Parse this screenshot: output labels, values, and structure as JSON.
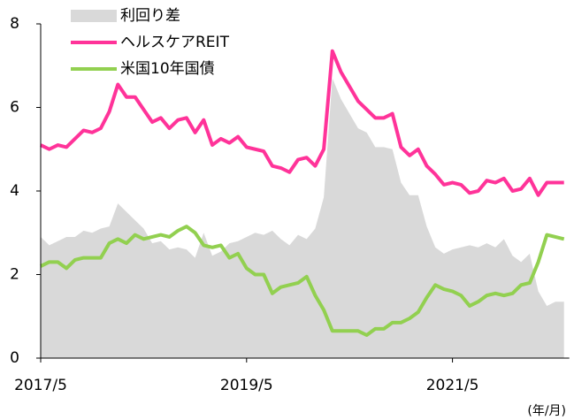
{
  "chart_data": {
    "type": "line",
    "categories": [
      "2017/5",
      null,
      null,
      null,
      null,
      null,
      null,
      null,
      null,
      null,
      null,
      null,
      null,
      null,
      null,
      null,
      null,
      null,
      null,
      null,
      null,
      null,
      null,
      null,
      "2019/5",
      null,
      null,
      null,
      null,
      null,
      null,
      null,
      null,
      null,
      null,
      null,
      null,
      null,
      null,
      null,
      null,
      null,
      null,
      null,
      null,
      null,
      null,
      null,
      "2021/5",
      null,
      null,
      null,
      null,
      null,
      null,
      null,
      null,
      null,
      null,
      null,
      null,
      null
    ],
    "series": [
      {
        "name": "利回り差",
        "kind": "area",
        "color": "#d9d9d9",
        "values": [
          2.9,
          2.7,
          2.8,
          2.9,
          2.9,
          3.05,
          3.0,
          3.1,
          3.15,
          3.7,
          3.5,
          3.3,
          3.1,
          2.75,
          2.8,
          2.6,
          2.65,
          2.6,
          2.4,
          3.0,
          2.45,
          2.55,
          2.75,
          2.8,
          2.9,
          3.0,
          2.95,
          3.05,
          2.85,
          2.7,
          2.95,
          2.85,
          3.1,
          3.85,
          6.7,
          6.2,
          5.85,
          5.5,
          5.4,
          5.05,
          5.05,
          5.0,
          4.2,
          3.9,
          3.9,
          3.15,
          2.65,
          2.5,
          2.6,
          2.65,
          2.7,
          2.65,
          2.75,
          2.65,
          2.85,
          2.45,
          2.3,
          2.5,
          1.6,
          1.25,
          1.35,
          1.35
        ]
      },
      {
        "name": "ヘルスケアREIT",
        "kind": "line",
        "color": "#ff3399",
        "values": [
          5.1,
          5.0,
          5.1,
          5.05,
          5.25,
          5.45,
          5.4,
          5.5,
          5.9,
          6.55,
          6.25,
          6.25,
          5.95,
          5.65,
          5.75,
          5.5,
          5.7,
          5.75,
          5.4,
          5.7,
          5.1,
          5.25,
          5.15,
          5.3,
          5.05,
          5.0,
          4.95,
          4.6,
          4.55,
          4.45,
          4.75,
          4.8,
          4.6,
          5.0,
          7.35,
          6.85,
          6.5,
          6.15,
          5.95,
          5.75,
          5.75,
          5.85,
          5.05,
          4.85,
          5.0,
          4.6,
          4.4,
          4.15,
          4.2,
          4.15,
          3.95,
          4.0,
          4.25,
          4.2,
          4.3,
          4.0,
          4.05,
          4.3,
          3.9,
          4.2,
          4.2,
          4.2
        ]
      },
      {
        "name": "米国10年国債",
        "kind": "line",
        "color": "#92d050",
        "values": [
          2.2,
          2.3,
          2.3,
          2.15,
          2.35,
          2.4,
          2.4,
          2.4,
          2.75,
          2.85,
          2.75,
          2.95,
          2.85,
          2.9,
          2.95,
          2.9,
          3.05,
          3.15,
          3.0,
          2.7,
          2.65,
          2.7,
          2.4,
          2.5,
          2.15,
          2.0,
          2.0,
          1.55,
          1.7,
          1.75,
          1.8,
          1.95,
          1.5,
          1.15,
          0.65,
          0.65,
          0.65,
          0.65,
          0.55,
          0.7,
          0.7,
          0.85,
          0.85,
          0.95,
          1.1,
          1.45,
          1.75,
          1.65,
          1.6,
          1.5,
          1.25,
          1.35,
          1.5,
          1.55,
          1.5,
          1.55,
          1.75,
          1.8,
          2.3,
          2.95,
          2.9,
          2.85
        ]
      }
    ],
    "ylim": [
      0,
      8
    ],
    "yticks": [
      0,
      2,
      4,
      6,
      8
    ],
    "x_unit_label": "(年/月)"
  }
}
